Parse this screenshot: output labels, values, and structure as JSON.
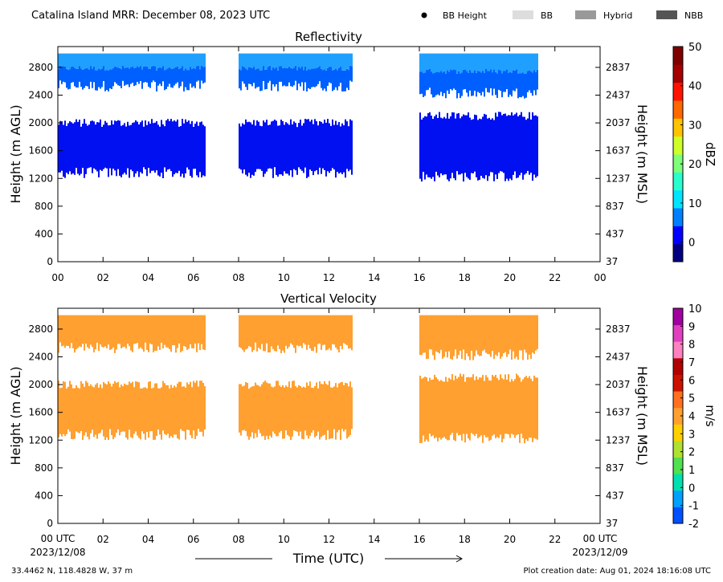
{
  "header": {
    "title": "Catalina Island MRR:  December 08, 2023 UTC",
    "legend": [
      {
        "label": "BB Height",
        "marker": "dot",
        "color": "#000000"
      },
      {
        "label": "BB",
        "marker": "patch",
        "color": "#dddddd"
      },
      {
        "label": "Hybrid",
        "marker": "patch",
        "color": "#999999"
      },
      {
        "label": "NBB",
        "marker": "patch",
        "color": "#555555"
      }
    ]
  },
  "footer": {
    "start_time": "00 UTC",
    "start_date": "2023/12/08",
    "end_time": "00 UTC",
    "end_date": "2023/12/09",
    "axis_label": "Time (UTC)",
    "location": "33.4462 N, 118.4828 W, 37 m",
    "created": "Plot creation date: Aug 01, 2024 18:16:08 UTC"
  },
  "chart_data": [
    {
      "type": "heatmap",
      "title": "Reflectivity",
      "ylabel": "Height (m AGL)",
      "ylabel_right": "Height (m MSL)",
      "x_ticks": [
        "00",
        "02",
        "04",
        "06",
        "08",
        "10",
        "12",
        "14",
        "16",
        "18",
        "20",
        "22",
        "00"
      ],
      "xlim": [
        0,
        24
      ],
      "y_ticks": [
        0,
        400,
        800,
        1200,
        1600,
        2000,
        2400,
        2800
      ],
      "y_ticks_right": [
        37,
        437,
        837,
        1237,
        1637,
        2037,
        2437,
        2837
      ],
      "ylim": [
        0,
        3100
      ],
      "colorbar": {
        "label": "dBZ",
        "range": [
          -5,
          50
        ],
        "ticks": [
          0,
          10,
          20,
          30,
          40,
          50
        ],
        "colors": [
          "#000080",
          "#0000ff",
          "#0080ff",
          "#00e5ff",
          "#29ffce",
          "#7dff7a",
          "#ceff29",
          "#ffc400",
          "#ff6800",
          "#ff1300",
          "#a40000",
          "#7f0000"
        ]
      },
      "segments": [
        {
          "t_start": 0.0,
          "t_end": 6.5,
          "layers": [
            {
              "bottom": 2500,
              "top": 3000,
              "level": 5
            },
            {
              "bottom": 1250,
              "top": 2000,
              "level": 0
            }
          ]
        },
        {
          "t_start": 8.0,
          "t_end": 13.0,
          "layers": [
            {
              "bottom": 2500,
              "top": 3000,
              "level": 5
            },
            {
              "bottom": 1250,
              "top": 2000,
              "level": 0
            }
          ]
        },
        {
          "t_start": 16.0,
          "t_end": 21.2,
          "layers": [
            {
              "bottom": 2400,
              "top": 3000,
              "level": 5
            },
            {
              "bottom": 1200,
              "top": 2100,
              "level": 0
            }
          ]
        }
      ]
    },
    {
      "type": "heatmap",
      "title": "Vertical Velocity",
      "ylabel": "Height (m AGL)",
      "ylabel_right": "Height (m MSL)",
      "x_ticks": [
        "00",
        "02",
        "04",
        "06",
        "08",
        "10",
        "12",
        "14",
        "16",
        "18",
        "20",
        "22",
        "00"
      ],
      "xlim": [
        0,
        24
      ],
      "y_ticks": [
        0,
        400,
        800,
        1200,
        1600,
        2000,
        2400,
        2800
      ],
      "y_ticks_right": [
        37,
        437,
        837,
        1237,
        1637,
        2037,
        2437,
        2837
      ],
      "ylim": [
        0,
        3100
      ],
      "colorbar": {
        "label": "m/s",
        "range": [
          -2,
          10
        ],
        "ticks": [
          -2,
          -1,
          0,
          1,
          2,
          3,
          4,
          5,
          6,
          7,
          8,
          9,
          10
        ],
        "colors": [
          "#0050ff",
          "#00a0ff",
          "#00e0b0",
          "#50e050",
          "#b0e030",
          "#ffd000",
          "#ffa030",
          "#ff7020",
          "#cc1100",
          "#b00000",
          "#ff80c0",
          "#e040c0",
          "#a000a0"
        ]
      },
      "segments": [
        {
          "t_start": 0.0,
          "t_end": 6.5,
          "layers": [
            {
              "bottom": 2500,
              "top": 3000,
              "level": 6
            },
            {
              "bottom": 1250,
              "top": 2000,
              "level": 6
            }
          ]
        },
        {
          "t_start": 8.0,
          "t_end": 13.0,
          "layers": [
            {
              "bottom": 2500,
              "top": 3000,
              "level": 6
            },
            {
              "bottom": 1250,
              "top": 2000,
              "level": 6
            }
          ]
        },
        {
          "t_start": 16.0,
          "t_end": 21.2,
          "layers": [
            {
              "bottom": 2400,
              "top": 3000,
              "level": 6
            },
            {
              "bottom": 1200,
              "top": 2100,
              "level": 6
            }
          ]
        }
      ]
    }
  ]
}
